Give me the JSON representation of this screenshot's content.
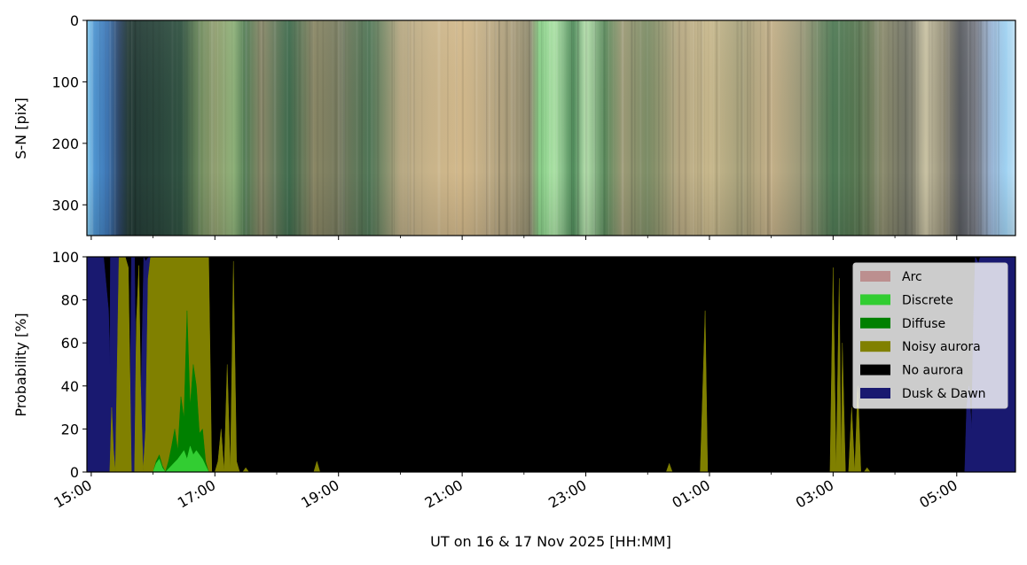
{
  "chart_data": [
    {
      "type": "heatmap",
      "description_role": "keogram",
      "ylabel": "S-N [pix]",
      "y_ticks": [
        0,
        100,
        200,
        300
      ],
      "ylim": [
        350,
        0
      ],
      "x_range_hours": [
        14.93,
        29.95
      ],
      "colors": [
        {
          "t": 14.93,
          "c": "#8fd3f5"
        },
        {
          "t": 15.05,
          "c": "#4f95d0"
        },
        {
          "t": 15.25,
          "c": "#3e78b8"
        },
        {
          "t": 15.45,
          "c": "#2d4666"
        },
        {
          "t": 15.6,
          "c": "#233a36"
        },
        {
          "t": 15.8,
          "c": "#263f38"
        },
        {
          "t": 16.2,
          "c": "#2c4a3e"
        },
        {
          "t": 16.45,
          "c": "#2f5140"
        },
        {
          "t": 16.75,
          "c": "#6d8a5c"
        },
        {
          "t": 17.0,
          "c": "#8e9c6c"
        },
        {
          "t": 17.3,
          "c": "#8fb27a"
        },
        {
          "t": 17.5,
          "c": "#4f7a52"
        },
        {
          "t": 17.75,
          "c": "#8c8a6a"
        },
        {
          "t": 18.2,
          "c": "#3d6a4c"
        },
        {
          "t": 18.6,
          "c": "#8a8765"
        },
        {
          "t": 19.0,
          "c": "#767a5e"
        },
        {
          "t": 19.5,
          "c": "#4e7555"
        },
        {
          "t": 20.0,
          "c": "#b6a883"
        },
        {
          "t": 20.5,
          "c": "#c9b48a"
        },
        {
          "t": 21.0,
          "c": "#d3b98b"
        },
        {
          "t": 21.4,
          "c": "#c0ad86"
        },
        {
          "t": 21.8,
          "c": "#a99c7a"
        },
        {
          "t": 22.1,
          "c": "#8f8a6d"
        },
        {
          "t": 22.25,
          "c": "#8ad28a"
        },
        {
          "t": 22.5,
          "c": "#a8dfa2"
        },
        {
          "t": 22.8,
          "c": "#4f8a5a"
        },
        {
          "t": 23.0,
          "c": "#b9e3b0"
        },
        {
          "t": 23.3,
          "c": "#5a8a5c"
        },
        {
          "t": 23.6,
          "c": "#9d9a76"
        },
        {
          "t": 24.0,
          "c": "#7b8c65"
        },
        {
          "t": 24.5,
          "c": "#b6a882"
        },
        {
          "t": 25.0,
          "c": "#c8b88c"
        },
        {
          "t": 25.5,
          "c": "#a8a27c"
        },
        {
          "t": 26.0,
          "c": "#c4b088"
        },
        {
          "t": 26.5,
          "c": "#9a9878"
        },
        {
          "t": 27.0,
          "c": "#4f7a55"
        },
        {
          "t": 27.4,
          "c": "#56754f"
        },
        {
          "t": 27.8,
          "c": "#8a8a6c"
        },
        {
          "t": 28.2,
          "c": "#737567"
        },
        {
          "t": 28.5,
          "c": "#c9c2a3"
        },
        {
          "t": 28.8,
          "c": "#8f8a74"
        },
        {
          "t": 29.05,
          "c": "#575a5f"
        },
        {
          "t": 29.3,
          "c": "#7a7d86"
        },
        {
          "t": 29.55,
          "c": "#9bb6d6"
        },
        {
          "t": 29.8,
          "c": "#9fd2f2"
        },
        {
          "t": 29.95,
          "c": "#c3e3f6"
        }
      ]
    },
    {
      "type": "area",
      "ylabel": "Probability [%]",
      "xlabel": "UT on 16 & 17 Nov 2025 [HH:MM]",
      "ylim": [
        0,
        100
      ],
      "y_ticks": [
        0,
        20,
        40,
        60,
        80,
        100
      ],
      "x_range_hours": [
        14.93,
        29.95
      ],
      "x_ticks": [
        {
          "h": 15,
          "label": "15:00"
        },
        {
          "h": 17,
          "label": "17:00"
        },
        {
          "h": 19,
          "label": "19:00"
        },
        {
          "h": 21,
          "label": "21:00"
        },
        {
          "h": 23,
          "label": "23:00"
        },
        {
          "h": 25,
          "label": "01:00"
        },
        {
          "h": 27,
          "label": "03:00"
        },
        {
          "h": 29,
          "label": "05:00"
        }
      ],
      "minor_ticks": [
        16,
        18,
        20,
        22,
        24,
        26,
        28
      ],
      "background_class": "No aurora",
      "legend_position": "top-right",
      "legend": [
        {
          "name": "Arc",
          "color": "#bc8f8f"
        },
        {
          "name": "Discrete",
          "color": "#32cd32"
        },
        {
          "name": "Diffuse",
          "color": "#008000"
        },
        {
          "name": "Noisy aurora",
          "color": "#808000"
        },
        {
          "name": "No aurora",
          "color": "#000000"
        },
        {
          "name": "Dusk & Dawn",
          "color": "#191970"
        }
      ],
      "series": [
        {
          "name": "Dusk & Dawn",
          "color": "#191970",
          "x": [
            14.93,
            15.2,
            15.28,
            15.3,
            15.31,
            15.38,
            15.45,
            15.47,
            15.5,
            15.62,
            15.65,
            15.7,
            15.74,
            15.78,
            15.85,
            15.88,
            15.93,
            15.98,
            16.0,
            29.13,
            29.16,
            29.2,
            29.24,
            29.27,
            29.3,
            29.35,
            29.38,
            29.42,
            29.45,
            29.95
          ],
          "y": [
            100,
            100,
            75,
            50,
            100,
            100,
            100,
            0,
            0,
            0,
            100,
            100,
            0,
            0,
            100,
            98,
            100,
            100,
            0,
            0,
            30,
            40,
            20,
            70,
            100,
            97,
            100,
            100,
            100,
            100
          ]
        },
        {
          "name": "Noisy aurora",
          "color": "#808000",
          "x": [
            15.3,
            15.33,
            15.36,
            15.39,
            15.45,
            15.5,
            15.55,
            15.6,
            15.65,
            15.7,
            15.73,
            15.77,
            15.8,
            15.84,
            15.88,
            15.92,
            15.96,
            16.0,
            16.1,
            16.3,
            16.5,
            16.7,
            16.85,
            16.9,
            16.95,
            17.0,
            17.05,
            17.1,
            17.15,
            17.2,
            17.25,
            17.3,
            17.35,
            17.4,
            17.45,
            17.5,
            17.55,
            17.6,
            18.6,
            18.65,
            18.7,
            19.35,
            24.3,
            24.35,
            24.4,
            24.85,
            24.93,
            24.97,
            25.02,
            26.95,
            27.0,
            27.05,
            27.1,
            27.13,
            27.15,
            27.2,
            27.25,
            27.3,
            27.35,
            27.4,
            27.45,
            27.5,
            27.55,
            27.6,
            27.65
          ],
          "y": [
            0,
            30,
            10,
            0,
            100,
            100,
            100,
            95,
            0,
            0,
            70,
            96,
            40,
            0,
            20,
            90,
            100,
            100,
            100,
            100,
            100,
            100,
            100,
            100,
            0,
            0,
            5,
            20,
            0,
            50,
            0,
            98,
            5,
            0,
            0,
            2,
            0,
            0,
            0,
            5,
            0,
            0,
            0,
            4,
            0,
            0,
            75,
            0,
            0,
            0,
            95,
            0,
            90,
            0,
            60,
            0,
            0,
            30,
            0,
            40,
            0,
            0,
            2,
            0,
            0
          ]
        },
        {
          "name": "Diffuse",
          "color": "#008000",
          "x": [
            16.0,
            16.05,
            16.1,
            16.15,
            16.2,
            16.25,
            16.3,
            16.35,
            16.4,
            16.45,
            16.5,
            16.55,
            16.6,
            16.65,
            16.7,
            16.75,
            16.8,
            16.85,
            16.9
          ],
          "y": [
            0,
            5,
            8,
            3,
            0,
            5,
            12,
            20,
            10,
            35,
            25,
            75,
            30,
            50,
            40,
            18,
            20,
            5,
            0
          ]
        },
        {
          "name": "Discrete",
          "color": "#32cd32",
          "x": [
            16.0,
            16.05,
            16.1,
            16.15,
            16.2,
            16.3,
            16.4,
            16.45,
            16.5,
            16.55,
            16.6,
            16.65,
            16.7,
            16.75,
            16.8,
            16.85,
            16.9
          ],
          "y": [
            0,
            4,
            6,
            2,
            0,
            3,
            6,
            8,
            10,
            6,
            12,
            8,
            10,
            8,
            6,
            3,
            0
          ]
        }
      ]
    }
  ]
}
